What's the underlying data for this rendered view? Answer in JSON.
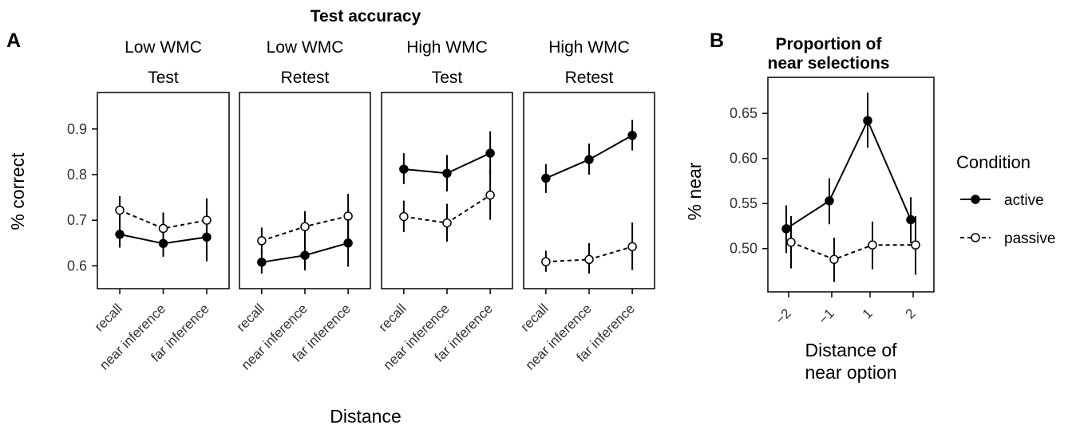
{
  "figure": {
    "panel_a_letter": "A",
    "panel_b_letter": "B",
    "panel_a_title": "Test accuracy",
    "panel_b_title_line1": "Proportion of",
    "panel_b_title_line2": "near selections"
  },
  "legend": {
    "title": "Condition",
    "items": [
      {
        "label": "active",
        "marker": "filled",
        "line": "solid"
      },
      {
        "label": "passive",
        "marker": "open",
        "line": "dashed"
      }
    ]
  },
  "colors": {
    "line": "#000000",
    "open_fill": "#ffffff",
    "tick_text": "#333333"
  },
  "chart_data": [
    {
      "type": "line",
      "title": "Test accuracy",
      "xlabel": "Distance",
      "ylabel": "% correct",
      "ylim": [
        0.55,
        0.98
      ],
      "yticks": [
        0.6,
        0.7,
        0.8,
        0.9
      ],
      "ytick_labels": [
        "0.6",
        "0.7",
        "0.8",
        "0.9"
      ],
      "categories": [
        "recall",
        "near inference",
        "far inference"
      ],
      "panels": [
        {
          "row1": "Low WMC",
          "row2": "Test",
          "series": [
            {
              "name": "active",
              "values": [
                0.669,
                0.649,
                0.663
              ],
              "lower": [
                0.64,
                0.62,
                0.61
              ],
              "upper": [
                0.698,
                0.678,
                0.718
              ]
            },
            {
              "name": "passive",
              "values": [
                0.722,
                0.682,
                0.7
              ],
              "lower": [
                0.693,
                0.653,
                0.653
              ],
              "upper": [
                0.753,
                0.717,
                0.748
              ]
            }
          ]
        },
        {
          "row1": "Low WMC",
          "row2": "Retest",
          "series": [
            {
              "name": "active",
              "values": [
                0.608,
                0.623,
                0.65
              ],
              "lower": [
                0.583,
                0.59,
                0.598
              ],
              "upper": [
                0.633,
                0.658,
                0.7
              ]
            },
            {
              "name": "passive",
              "values": [
                0.655,
                0.686,
                0.709
              ],
              "lower": [
                0.628,
                0.655,
                0.661
              ],
              "upper": [
                0.684,
                0.72,
                0.758
              ]
            }
          ]
        },
        {
          "row1": "High WMC",
          "row2": "Test",
          "series": [
            {
              "name": "active",
              "values": [
                0.812,
                0.803,
                0.847
              ],
              "lower": [
                0.779,
                0.763,
                0.799
              ],
              "upper": [
                0.847,
                0.843,
                0.895
              ]
            },
            {
              "name": "passive",
              "values": [
                0.708,
                0.694,
                0.755
              ],
              "lower": [
                0.674,
                0.653,
                0.701
              ],
              "upper": [
                0.743,
                0.736,
                0.81
              ]
            }
          ]
        },
        {
          "row1": "High WMC",
          "row2": "Retest",
          "series": [
            {
              "name": "active",
              "values": [
                0.792,
                0.833,
                0.886
              ],
              "lower": [
                0.76,
                0.8,
                0.853
              ],
              "upper": [
                0.823,
                0.868,
                0.92
              ]
            },
            {
              "name": "passive",
              "values": [
                0.609,
                0.614,
                0.642
              ],
              "lower": [
                0.587,
                0.583,
                0.591
              ],
              "upper": [
                0.633,
                0.65,
                0.695
              ]
            }
          ]
        }
      ]
    },
    {
      "type": "line",
      "title": "Proportion of near selections",
      "xlabel_line1": "Distance of",
      "xlabel_line2": "near option",
      "ylabel": "% near",
      "ylim": [
        0.452,
        0.69
      ],
      "yticks": [
        0.5,
        0.55,
        0.6,
        0.65
      ],
      "ytick_labels": [
        "0.50",
        "0.55",
        "0.60",
        "0.65"
      ],
      "categories": [
        "−2",
        "−1",
        "1",
        "2"
      ],
      "series": [
        {
          "name": "active",
          "values": [
            0.522,
            0.553,
            0.642,
            0.532
          ],
          "lower": [
            0.495,
            0.527,
            0.612,
            0.506
          ],
          "upper": [
            0.548,
            0.578,
            0.673,
            0.557
          ]
        },
        {
          "name": "passive",
          "values": [
            0.507,
            0.488,
            0.504,
            0.504
          ],
          "lower": [
            0.478,
            0.463,
            0.477,
            0.471
          ],
          "upper": [
            0.536,
            0.512,
            0.53,
            0.536
          ]
        }
      ]
    }
  ]
}
